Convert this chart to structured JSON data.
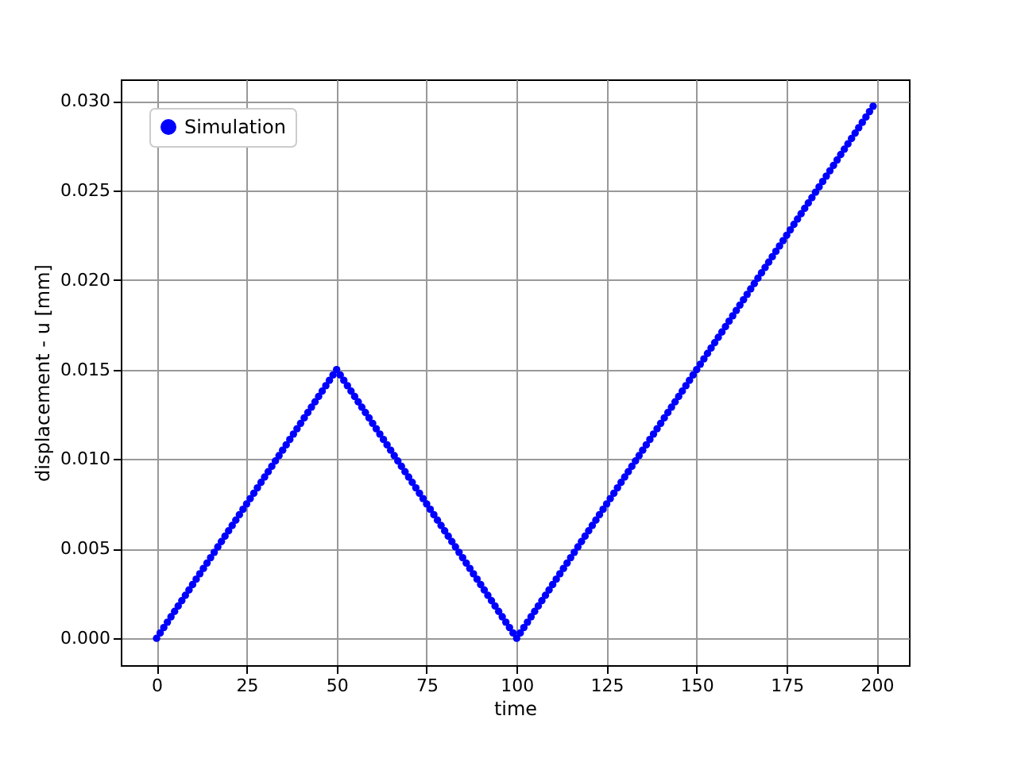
{
  "chart_data": {
    "type": "scatter",
    "xlabel": "time",
    "ylabel": "displacement - u [mm]",
    "xlim": [
      -9.95,
      208.95
    ],
    "ylim": [
      -0.0015,
      0.0312
    ],
    "xticks": [
      0,
      25,
      50,
      75,
      100,
      125,
      150,
      175,
      200
    ],
    "yticks": [
      {
        "value": 0,
        "label": "0.000"
      },
      {
        "value": 0.005,
        "label": "0.005"
      },
      {
        "value": 0.01,
        "label": "0.010"
      },
      {
        "value": 0.015,
        "label": "0.015"
      },
      {
        "value": 0.02,
        "label": "0.020"
      },
      {
        "value": 0.025,
        "label": "0.025"
      },
      {
        "value": 0.03,
        "label": "0.030"
      }
    ],
    "grid": true,
    "legend": "top left",
    "marker": "circle",
    "series": [
      {
        "name": "Simulation",
        "color": "#0000ff",
        "x": [
          0,
          1,
          2,
          3,
          4,
          5,
          6,
          7,
          8,
          9,
          10,
          11,
          12,
          13,
          14,
          15,
          16,
          17,
          18,
          19,
          20,
          21,
          22,
          23,
          24,
          25,
          26,
          27,
          28,
          29,
          30,
          31,
          32,
          33,
          34,
          35,
          36,
          37,
          38,
          39,
          40,
          41,
          42,
          43,
          44,
          45,
          46,
          47,
          48,
          49,
          50,
          51,
          52,
          53,
          54,
          55,
          56,
          57,
          58,
          59,
          60,
          61,
          62,
          63,
          64,
          65,
          66,
          67,
          68,
          69,
          70,
          71,
          72,
          73,
          74,
          75,
          76,
          77,
          78,
          79,
          80,
          81,
          82,
          83,
          84,
          85,
          86,
          87,
          88,
          89,
          90,
          91,
          92,
          93,
          94,
          95,
          96,
          97,
          98,
          99,
          100,
          101,
          102,
          103,
          104,
          105,
          106,
          107,
          108,
          109,
          110,
          111,
          112,
          113,
          114,
          115,
          116,
          117,
          118,
          119,
          120,
          121,
          122,
          123,
          124,
          125,
          126,
          127,
          128,
          129,
          130,
          131,
          132,
          133,
          134,
          135,
          136,
          137,
          138,
          139,
          140,
          141,
          142,
          143,
          144,
          145,
          146,
          147,
          148,
          149,
          150,
          151,
          152,
          153,
          154,
          155,
          156,
          157,
          158,
          159,
          160,
          161,
          162,
          163,
          164,
          165,
          166,
          167,
          168,
          169,
          170,
          171,
          172,
          173,
          174,
          175,
          176,
          177,
          178,
          179,
          180,
          181,
          182,
          183,
          184,
          185,
          186,
          187,
          188,
          189,
          190,
          191,
          192,
          193,
          194,
          195,
          196,
          197,
          198,
          199
        ],
        "values": [
          0,
          0.0003,
          0.0006,
          0.0009,
          0.0012,
          0.0015,
          0.0018,
          0.0021,
          0.0024,
          0.0027,
          0.003,
          0.0033,
          0.0036,
          0.0039,
          0.0042,
          0.0045,
          0.0048,
          0.0051,
          0.0054,
          0.0057,
          0.006,
          0.0063,
          0.0066,
          0.0069,
          0.0072,
          0.0075,
          0.0078,
          0.0081,
          0.0084,
          0.0087,
          0.009,
          0.0093,
          0.0096,
          0.0099,
          0.0102,
          0.0105,
          0.0108,
          0.0111,
          0.0114,
          0.0117,
          0.012,
          0.0123,
          0.0126,
          0.0129,
          0.0132,
          0.0135,
          0.0138,
          0.0141,
          0.0144,
          0.0147,
          0.015,
          0.0147,
          0.0144,
          0.0141,
          0.0138,
          0.0135,
          0.0132,
          0.0129,
          0.0126,
          0.0123,
          0.012,
          0.0117,
          0.0114,
          0.0111,
          0.0108,
          0.0105,
          0.0102,
          0.0099,
          0.0096,
          0.0093,
          0.009,
          0.0087,
          0.0084,
          0.0081,
          0.0078,
          0.0075,
          0.0072,
          0.0069,
          0.0066,
          0.0063,
          0.006,
          0.0057,
          0.0054,
          0.0051,
          0.0048,
          0.0045,
          0.0042,
          0.0039,
          0.0036,
          0.0033,
          0.003,
          0.0027,
          0.0024,
          0.0021,
          0.0018,
          0.0015,
          0.0012,
          0.0009,
          0.0006,
          0.0003,
          0,
          0.0003,
          0.0006,
          0.0009,
          0.0012,
          0.0015,
          0.0018,
          0.0021,
          0.0024,
          0.0027,
          0.003,
          0.0033,
          0.0036,
          0.0039,
          0.0042,
          0.0045,
          0.0048,
          0.0051,
          0.0054,
          0.0057,
          0.006,
          0.0063,
          0.0066,
          0.0069,
          0.0072,
          0.0075,
          0.0078,
          0.0081,
          0.0084,
          0.0087,
          0.009,
          0.0093,
          0.0096,
          0.0099,
          0.0102,
          0.0105,
          0.0108,
          0.0111,
          0.0114,
          0.0117,
          0.012,
          0.0123,
          0.0126,
          0.0129,
          0.0132,
          0.0135,
          0.0138,
          0.0141,
          0.0144,
          0.0147,
          0.015,
          0.0153,
          0.0156,
          0.0159,
          0.0162,
          0.0165,
          0.0168,
          0.0171,
          0.0174,
          0.0177,
          0.018,
          0.0183,
          0.0186,
          0.0189,
          0.0192,
          0.0195,
          0.0198,
          0.0201,
          0.0204,
          0.0207,
          0.021,
          0.0213,
          0.0216,
          0.0219,
          0.0222,
          0.0225,
          0.0228,
          0.0231,
          0.0234,
          0.0237,
          0.024,
          0.0243,
          0.0246,
          0.0249,
          0.0252,
          0.0255,
          0.0258,
          0.0261,
          0.0264,
          0.0267,
          0.027,
          0.0273,
          0.0276,
          0.0279,
          0.0282,
          0.0285,
          0.0288,
          0.0291,
          0.0294,
          0.0297
        ]
      }
    ]
  }
}
